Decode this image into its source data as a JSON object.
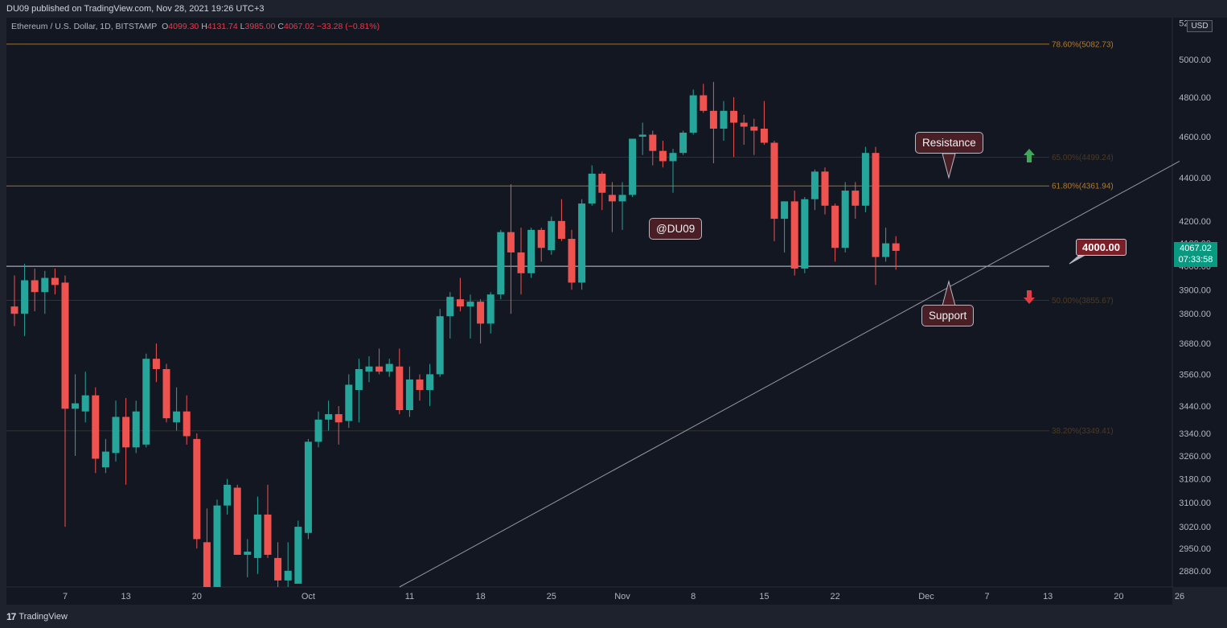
{
  "header": {
    "publish_text": "DU09 published on TradingView.com, Nov 28, 2021 19:26 UTC+3"
  },
  "legend": {
    "symbol": "Ethereum / U.S. Dollar, 1D, BITSTAMP",
    "o_label": "O",
    "o": "4099.30",
    "h_label": "H",
    "h": "4131.74",
    "l_label": "L",
    "l": "3985.00",
    "c_label": "C",
    "c": "4067.02",
    "change": "−33.28 (−0.81%)"
  },
  "annotations": {
    "watermark": "@DU09",
    "resistance": "Resistance",
    "support": "Support",
    "level_label": "4000.00"
  },
  "price_axis": {
    "currency": "USD",
    "last_price": "4067.02",
    "countdown": "07:33:58"
  },
  "footer": {
    "logo_glyph": "17",
    "brand": "TradingView"
  },
  "colors": {
    "background": "#1e222d",
    "plot_background": "#131722",
    "up": "#26a69a",
    "down": "#ef5350",
    "fib": "#b27a2c",
    "text": "#b2b5be"
  },
  "chart_data": {
    "type": "candlestick",
    "title": "Ethereum / U.S. Dollar, 1D, BITSTAMP",
    "scale": "log",
    "ylim": [
      2830,
      5230
    ],
    "y_ticks": [
      5200,
      5000,
      4800,
      4600,
      4400,
      4200,
      4100,
      4000,
      3900,
      3800,
      3680,
      3560,
      3440,
      3340,
      3260,
      3180,
      3100,
      3020,
      2950,
      2880
    ],
    "y_tick_labels": [
      "5200.00",
      "5000.00",
      "4800.00",
      "4600.00",
      "4400.00",
      "4200.00",
      "4100.00",
      "4000.00",
      "3900.00",
      "3800.00",
      "3680.00",
      "3560.00",
      "3440.00",
      "3340.00",
      "3260.00",
      "3180.00",
      "3100.00",
      "3020.00",
      "2950.00",
      "2880.00"
    ],
    "x_ticks": [
      {
        "label": "7",
        "date": "2021-09-07"
      },
      {
        "label": "13",
        "date": "2021-09-13"
      },
      {
        "label": "20",
        "date": "2021-09-20"
      },
      {
        "label": "Oct",
        "date": "2021-10-01"
      },
      {
        "label": "11",
        "date": "2021-10-11"
      },
      {
        "label": "18",
        "date": "2021-10-18"
      },
      {
        "label": "25",
        "date": "2021-10-25"
      },
      {
        "label": "Nov",
        "date": "2021-11-01"
      },
      {
        "label": "8",
        "date": "2021-11-08"
      },
      {
        "label": "15",
        "date": "2021-11-15"
      },
      {
        "label": "22",
        "date": "2021-11-22"
      },
      {
        "label": "Dec",
        "date": "2021-12-01"
      },
      {
        "label": "7",
        "date": "2021-12-07"
      },
      {
        "label": "13",
        "date": "2021-12-13"
      },
      {
        "label": "20",
        "date": "2021-12-20"
      },
      {
        "label": "26",
        "date": "2021-12-26"
      }
    ],
    "candles": [
      {
        "d": "2021-09-02",
        "o": 3830,
        "h": 3960,
        "l": 3750,
        "c": 3800
      },
      {
        "d": "2021-09-03",
        "o": 3800,
        "h": 4010,
        "l": 3710,
        "c": 3940
      },
      {
        "d": "2021-09-04",
        "o": 3940,
        "h": 3990,
        "l": 3810,
        "c": 3890
      },
      {
        "d": "2021-09-05",
        "o": 3890,
        "h": 3980,
        "l": 3800,
        "c": 3950
      },
      {
        "d": "2021-09-06",
        "o": 3950,
        "h": 3990,
        "l": 3880,
        "c": 3920
      },
      {
        "d": "2021-09-07",
        "o": 3930,
        "h": 3960,
        "l": 3020,
        "c": 3430
      },
      {
        "d": "2021-09-08",
        "o": 3430,
        "h": 3560,
        "l": 3260,
        "c": 3450
      },
      {
        "d": "2021-09-09",
        "o": 3420,
        "h": 3570,
        "l": 3380,
        "c": 3480
      },
      {
        "d": "2021-09-10",
        "o": 3480,
        "h": 3510,
        "l": 3200,
        "c": 3250
      },
      {
        "d": "2021-09-11",
        "o": 3220,
        "h": 3320,
        "l": 3200,
        "c": 3275
      },
      {
        "d": "2021-09-12",
        "o": 3270,
        "h": 3460,
        "l": 3240,
        "c": 3400
      },
      {
        "d": "2021-09-13",
        "o": 3400,
        "h": 3470,
        "l": 3160,
        "c": 3290
      },
      {
        "d": "2021-09-14",
        "o": 3290,
        "h": 3460,
        "l": 3270,
        "c": 3420
      },
      {
        "d": "2021-09-15",
        "o": 3300,
        "h": 3640,
        "l": 3290,
        "c": 3620
      },
      {
        "d": "2021-09-16",
        "o": 3620,
        "h": 3680,
        "l": 3530,
        "c": 3580
      },
      {
        "d": "2021-09-17",
        "o": 3580,
        "h": 3600,
        "l": 3380,
        "c": 3395
      },
      {
        "d": "2021-09-18",
        "o": 3380,
        "h": 3510,
        "l": 3350,
        "c": 3420
      },
      {
        "d": "2021-09-19",
        "o": 3420,
        "h": 3480,
        "l": 3300,
        "c": 3330
      },
      {
        "d": "2021-09-20",
        "o": 3320,
        "h": 3340,
        "l": 2950,
        "c": 2980
      },
      {
        "d": "2021-09-21",
        "o": 2970,
        "h": 3080,
        "l": 2700,
        "c": 2760
      },
      {
        "d": "2021-09-22",
        "o": 2760,
        "h": 3110,
        "l": 2740,
        "c": 3090
      },
      {
        "d": "2021-09-23",
        "o": 3090,
        "h": 3180,
        "l": 3060,
        "c": 3160
      },
      {
        "d": "2021-09-24",
        "o": 3150,
        "h": 3160,
        "l": 2940,
        "c": 2930
      },
      {
        "d": "2021-09-25",
        "o": 2930,
        "h": 2980,
        "l": 2860,
        "c": 2940
      },
      {
        "d": "2021-09-26",
        "o": 2920,
        "h": 3120,
        "l": 2870,
        "c": 3060
      },
      {
        "d": "2021-09-27",
        "o": 3060,
        "h": 3160,
        "l": 2920,
        "c": 2930
      },
      {
        "d": "2021-09-28",
        "o": 2920,
        "h": 2970,
        "l": 2820,
        "c": 2850
      },
      {
        "d": "2021-09-29",
        "o": 2850,
        "h": 2970,
        "l": 2820,
        "c": 2880
      },
      {
        "d": "2021-09-30",
        "o": 2840,
        "h": 3040,
        "l": 2840,
        "c": 3020
      },
      {
        "d": "2021-10-01",
        "o": 3000,
        "h": 3320,
        "l": 2980,
        "c": 3310
      },
      {
        "d": "2021-10-02",
        "o": 3310,
        "h": 3420,
        "l": 3290,
        "c": 3390
      },
      {
        "d": "2021-10-03",
        "o": 3390,
        "h": 3460,
        "l": 3350,
        "c": 3410
      },
      {
        "d": "2021-10-04",
        "o": 3410,
        "h": 3440,
        "l": 3300,
        "c": 3380
      },
      {
        "d": "2021-10-05",
        "o": 3385,
        "h": 3560,
        "l": 3360,
        "c": 3520
      },
      {
        "d": "2021-10-06",
        "o": 3500,
        "h": 3620,
        "l": 3380,
        "c": 3580
      },
      {
        "d": "2021-10-07",
        "o": 3570,
        "h": 3630,
        "l": 3530,
        "c": 3590
      },
      {
        "d": "2021-10-08",
        "o": 3590,
        "h": 3660,
        "l": 3560,
        "c": 3570
      },
      {
        "d": "2021-10-09",
        "o": 3570,
        "h": 3620,
        "l": 3550,
        "c": 3600
      },
      {
        "d": "2021-10-10",
        "o": 3590,
        "h": 3660,
        "l": 3410,
        "c": 3425
      },
      {
        "d": "2021-10-11",
        "o": 3425,
        "h": 3590,
        "l": 3400,
        "c": 3540
      },
      {
        "d": "2021-10-12",
        "o": 3540,
        "h": 3560,
        "l": 3460,
        "c": 3500
      },
      {
        "d": "2021-10-13",
        "o": 3500,
        "h": 3600,
        "l": 3440,
        "c": 3560
      },
      {
        "d": "2021-10-14",
        "o": 3560,
        "h": 3820,
        "l": 3550,
        "c": 3790
      },
      {
        "d": "2021-10-15",
        "o": 3790,
        "h": 3890,
        "l": 3700,
        "c": 3870
      },
      {
        "d": "2021-10-16",
        "o": 3860,
        "h": 3950,
        "l": 3810,
        "c": 3830
      },
      {
        "d": "2021-10-17",
        "o": 3830,
        "h": 3880,
        "l": 3700,
        "c": 3850
      },
      {
        "d": "2021-10-18",
        "o": 3850,
        "h": 3860,
        "l": 3680,
        "c": 3760
      },
      {
        "d": "2021-10-19",
        "o": 3760,
        "h": 3890,
        "l": 3720,
        "c": 3880
      },
      {
        "d": "2021-10-20",
        "o": 3880,
        "h": 4160,
        "l": 3860,
        "c": 4150
      },
      {
        "d": "2021-10-21",
        "o": 4150,
        "h": 4370,
        "l": 3800,
        "c": 4060
      },
      {
        "d": "2021-10-22",
        "o": 4060,
        "h": 4170,
        "l": 3880,
        "c": 3970
      },
      {
        "d": "2021-10-23",
        "o": 3970,
        "h": 4170,
        "l": 3950,
        "c": 4160
      },
      {
        "d": "2021-10-24",
        "o": 4160,
        "h": 4170,
        "l": 4020,
        "c": 4080
      },
      {
        "d": "2021-10-25",
        "o": 4070,
        "h": 4220,
        "l": 4050,
        "c": 4200
      },
      {
        "d": "2021-10-26",
        "o": 4200,
        "h": 4300,
        "l": 4110,
        "c": 4120
      },
      {
        "d": "2021-10-27",
        "o": 4120,
        "h": 4160,
        "l": 3900,
        "c": 3930
      },
      {
        "d": "2021-10-28",
        "o": 3930,
        "h": 4300,
        "l": 3900,
        "c": 4280
      },
      {
        "d": "2021-10-29",
        "o": 4280,
        "h": 4460,
        "l": 4270,
        "c": 4420
      },
      {
        "d": "2021-10-30",
        "o": 4420,
        "h": 4430,
        "l": 4250,
        "c": 4330
      },
      {
        "d": "2021-10-31",
        "o": 4320,
        "h": 4380,
        "l": 4150,
        "c": 4290
      },
      {
        "d": "2021-11-01",
        "o": 4290,
        "h": 4380,
        "l": 4160,
        "c": 4320
      },
      {
        "d": "2021-11-02",
        "o": 4320,
        "h": 4590,
        "l": 4310,
        "c": 4590
      },
      {
        "d": "2021-11-03",
        "o": 4600,
        "h": 4670,
        "l": 4510,
        "c": 4610
      },
      {
        "d": "2021-11-04",
        "o": 4610,
        "h": 4630,
        "l": 4460,
        "c": 4530
      },
      {
        "d": "2021-11-05",
        "o": 4530,
        "h": 4580,
        "l": 4450,
        "c": 4480
      },
      {
        "d": "2021-11-06",
        "o": 4480,
        "h": 4540,
        "l": 4330,
        "c": 4520
      },
      {
        "d": "2021-11-07",
        "o": 4520,
        "h": 4630,
        "l": 4510,
        "c": 4620
      },
      {
        "d": "2021-11-08",
        "o": 4620,
        "h": 4840,
        "l": 4610,
        "c": 4810
      },
      {
        "d": "2021-11-09",
        "o": 4810,
        "h": 4870,
        "l": 4720,
        "c": 4730
      },
      {
        "d": "2021-11-10",
        "o": 4730,
        "h": 4880,
        "l": 4470,
        "c": 4640
      },
      {
        "d": "2021-11-11",
        "o": 4640,
        "h": 4780,
        "l": 4580,
        "c": 4730
      },
      {
        "d": "2021-11-12",
        "o": 4730,
        "h": 4800,
        "l": 4500,
        "c": 4670
      },
      {
        "d": "2021-11-13",
        "o": 4670,
        "h": 4710,
        "l": 4560,
        "c": 4650
      },
      {
        "d": "2021-11-14",
        "o": 4650,
        "h": 4690,
        "l": 4510,
        "c": 4630
      },
      {
        "d": "2021-11-15",
        "o": 4640,
        "h": 4780,
        "l": 4560,
        "c": 4570
      },
      {
        "d": "2021-11-16",
        "o": 4570,
        "h": 4580,
        "l": 4110,
        "c": 4210
      },
      {
        "d": "2021-11-17",
        "o": 4210,
        "h": 4290,
        "l": 4060,
        "c": 4290
      },
      {
        "d": "2021-11-18",
        "o": 4290,
        "h": 4340,
        "l": 3960,
        "c": 3990
      },
      {
        "d": "2021-11-19",
        "o": 3990,
        "h": 4310,
        "l": 3970,
        "c": 4300
      },
      {
        "d": "2021-11-20",
        "o": 4300,
        "h": 4440,
        "l": 4250,
        "c": 4430
      },
      {
        "d": "2021-11-21",
        "o": 4430,
        "h": 4450,
        "l": 4230,
        "c": 4270
      },
      {
        "d": "2021-11-22",
        "o": 4270,
        "h": 4280,
        "l": 4020,
        "c": 4080
      },
      {
        "d": "2021-11-23",
        "o": 4080,
        "h": 4380,
        "l": 4060,
        "c": 4340
      },
      {
        "d": "2021-11-24",
        "o": 4340,
        "h": 4380,
        "l": 4210,
        "c": 4270
      },
      {
        "d": "2021-11-25",
        "o": 4270,
        "h": 4550,
        "l": 4240,
        "c": 4520
      },
      {
        "d": "2021-11-26",
        "o": 4520,
        "h": 4550,
        "l": 3920,
        "c": 4040
      },
      {
        "d": "2021-11-27",
        "o": 4040,
        "h": 4170,
        "l": 4020,
        "c": 4100
      },
      {
        "d": "2021-11-28",
        "o": 4100,
        "h": 4131.74,
        "l": 3985,
        "c": 4067.02
      }
    ],
    "fib_levels": [
      {
        "label": "78.60%(5082.73)",
        "price": 5082.73,
        "emphasis": true
      },
      {
        "label": "65.00%(4499.24)",
        "price": 4499.24,
        "emphasis": false
      },
      {
        "label": "61.80%(4361.94)",
        "price": 4361.94,
        "emphasis": true
      },
      {
        "label": "50.00%(3855.67)",
        "price": 3855.67,
        "emphasis": false
      },
      {
        "label": "38.20%(3349.41)",
        "price": 3349.41,
        "emphasis": false
      }
    ],
    "horizontal_line": 4000,
    "trendline": [
      {
        "d": "2021-10-10",
        "price": 2830
      },
      {
        "d": "2021-12-26",
        "price": 4480
      }
    ]
  }
}
